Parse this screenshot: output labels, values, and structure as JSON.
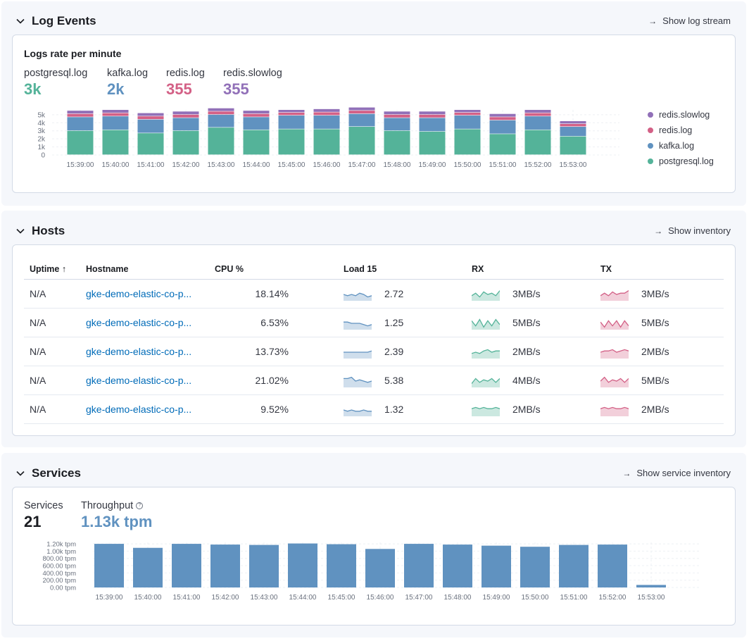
{
  "log_events": {
    "title": "Log Events",
    "link": "Show log stream",
    "panel_title": "Logs rate per minute",
    "stats": [
      {
        "label": "postgresql.log",
        "value": "3k",
        "color": "#54b399"
      },
      {
        "label": "kafka.log",
        "value": "2k",
        "color": "#6092c0"
      },
      {
        "label": "redis.log",
        "value": "355",
        "color": "#d36086"
      },
      {
        "label": "redis.slowlog",
        "value": "355",
        "color": "#9170b8"
      }
    ],
    "legend": [
      {
        "label": "redis.slowlog",
        "color": "#9170b8"
      },
      {
        "label": "redis.log",
        "color": "#d36086"
      },
      {
        "label": "kafka.log",
        "color": "#6092c0"
      },
      {
        "label": "postgresql.log",
        "color": "#54b399"
      }
    ]
  },
  "hosts": {
    "title": "Hosts",
    "link": "Show inventory",
    "columns": {
      "uptime": "Uptime",
      "hostname": "Hostname",
      "cpu": "CPU %",
      "load": "Load 15",
      "rx": "RX",
      "tx": "TX"
    },
    "rows": [
      {
        "uptime": "N/A",
        "hostname": "gke-demo-elastic-co-p...",
        "cpu": "18.14%",
        "load": "2.72",
        "rx": "3MB/s",
        "tx": "3MB/s"
      },
      {
        "uptime": "N/A",
        "hostname": "gke-demo-elastic-co-p...",
        "cpu": "6.53%",
        "load": "1.25",
        "rx": "5MB/s",
        "tx": "5MB/s"
      },
      {
        "uptime": "N/A",
        "hostname": "gke-demo-elastic-co-p...",
        "cpu": "13.73%",
        "load": "2.39",
        "rx": "2MB/s",
        "tx": "2MB/s"
      },
      {
        "uptime": "N/A",
        "hostname": "gke-demo-elastic-co-p...",
        "cpu": "21.02%",
        "load": "5.38",
        "rx": "4MB/s",
        "tx": "5MB/s"
      },
      {
        "uptime": "N/A",
        "hostname": "gke-demo-elastic-co-p...",
        "cpu": "9.52%",
        "load": "1.32",
        "rx": "2MB/s",
        "tx": "2MB/s"
      }
    ],
    "colors": {
      "load": "#6092c0",
      "rx": "#54b399",
      "tx": "#d36086"
    }
  },
  "services": {
    "title": "Services",
    "link": "Show service inventory",
    "services_label": "Services",
    "services_value": "21",
    "throughput_label": "Throughput",
    "throughput_value": "1.13k tpm",
    "throughput_color": "#6092c0"
  },
  "chart_data": [
    {
      "type": "bar",
      "stacked": true,
      "title": "Logs rate per minute",
      "categories": [
        "15:39:00",
        "15:40:00",
        "15:41:00",
        "15:42:00",
        "15:43:00",
        "15:44:00",
        "15:45:00",
        "15:46:00",
        "15:47:00",
        "15:48:00",
        "15:49:00",
        "15:50:00",
        "15:51:00",
        "15:52:00",
        "15:53:00"
      ],
      "y_ticks": [
        "0",
        "1k",
        "2k",
        "3k",
        "4k",
        "5k"
      ],
      "ylim": [
        0,
        5600
      ],
      "grid": true,
      "legend_position": "right",
      "series": [
        {
          "name": "postgresql.log",
          "color": "#54b399",
          "values": [
            3000,
            3100,
            2700,
            3000,
            3400,
            3100,
            3200,
            3200,
            3500,
            3000,
            2900,
            3200,
            2600,
            3100,
            2300
          ]
        },
        {
          "name": "kafka.log",
          "color": "#6092c0",
          "values": [
            1700,
            1700,
            1700,
            1600,
            1600,
            1600,
            1700,
            1700,
            1600,
            1600,
            1700,
            1700,
            1700,
            1700,
            1200
          ]
        },
        {
          "name": "redis.log",
          "color": "#d36086",
          "values": [
            400,
            400,
            400,
            400,
            400,
            400,
            350,
            400,
            400,
            400,
            400,
            350,
            400,
            400,
            350
          ]
        },
        {
          "name": "redis.slowlog",
          "color": "#9170b8",
          "values": [
            400,
            400,
            400,
            400,
            400,
            400,
            350,
            400,
            400,
            400,
            400,
            350,
            400,
            400,
            350
          ]
        }
      ]
    },
    {
      "type": "bar",
      "title": "",
      "categories": [
        "15:39:00",
        "15:40:00",
        "15:41:00",
        "15:42:00",
        "15:43:00",
        "15:44:00",
        "15:45:00",
        "15:46:00",
        "15:47:00",
        "15:48:00",
        "15:49:00",
        "15:50:00",
        "15:51:00",
        "15:52:00",
        "15:53:00"
      ],
      "y_ticks": [
        "0.00 tpm",
        "200.00 tpm",
        "400.00 tpm",
        "600.00 tpm",
        "800.00 tpm",
        "1.00k tpm",
        "1.20k tpm"
      ],
      "ylim": [
        0,
        1240
      ],
      "grid": true,
      "series": [
        {
          "name": "",
          "color": "#6092c0",
          "values": [
            1200,
            1090,
            1200,
            1180,
            1170,
            1210,
            1190,
            1060,
            1200,
            1180,
            1150,
            1120,
            1170,
            1180,
            70
          ]
        }
      ]
    },
    {
      "type": "area",
      "title": "",
      "sparklines": {
        "load": [
          [
            5,
            4,
            5,
            4,
            6,
            5,
            3,
            4
          ],
          [
            6,
            6,
            5,
            5,
            5,
            4,
            3,
            4
          ],
          [
            5,
            5,
            5,
            5,
            5,
            5,
            5,
            6
          ],
          [
            7,
            7,
            8,
            5,
            6,
            5,
            4,
            5
          ],
          [
            5,
            4,
            5,
            4,
            4,
            5,
            4,
            4
          ]
        ],
        "rx": [
          [
            4,
            6,
            3,
            7,
            5,
            6,
            4,
            8
          ],
          [
            7,
            3,
            8,
            2,
            7,
            3,
            8,
            4
          ],
          [
            4,
            5,
            4,
            6,
            7,
            5,
            6,
            6
          ],
          [
            3,
            7,
            4,
            6,
            5,
            7,
            4,
            7
          ],
          [
            6,
            7,
            6,
            7,
            6,
            6,
            7,
            6
          ]
        ],
        "tx": [
          [
            4,
            6,
            4,
            7,
            5,
            6,
            6,
            8
          ],
          [
            6,
            2,
            7,
            3,
            7,
            2,
            7,
            3
          ],
          [
            5,
            6,
            6,
            7,
            5,
            6,
            7,
            6
          ],
          [
            5,
            8,
            4,
            6,
            5,
            7,
            4,
            7
          ],
          [
            6,
            7,
            6,
            7,
            6,
            6,
            7,
            6
          ]
        ]
      }
    }
  ]
}
